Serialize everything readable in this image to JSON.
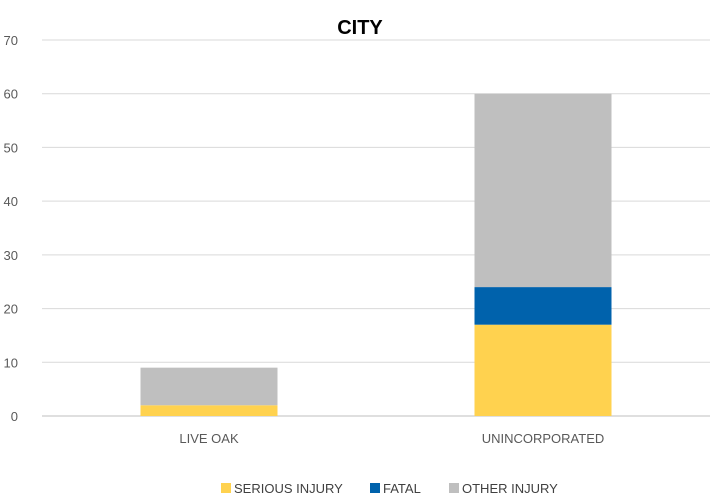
{
  "chart_data": {
    "type": "bar",
    "stacked": true,
    "title": "CITY",
    "xlabel": "",
    "ylabel": "",
    "categories": [
      "LIVE OAK",
      "UNINCORPORATED"
    ],
    "series": [
      {
        "name": "SERIOUS INJURY",
        "color": "#FFD24F",
        "values": [
          2,
          17
        ]
      },
      {
        "name": "FATAL",
        "color": "#0062AC",
        "values": [
          0,
          7
        ]
      },
      {
        "name": "OTHER INJURY",
        "color": "#BFBFBF",
        "values": [
          7,
          36
        ]
      }
    ],
    "ylim": [
      0,
      70
    ],
    "yticks": [
      0,
      10,
      20,
      30,
      40,
      50,
      60,
      70
    ],
    "grid": true,
    "legend_position": "bottom"
  }
}
